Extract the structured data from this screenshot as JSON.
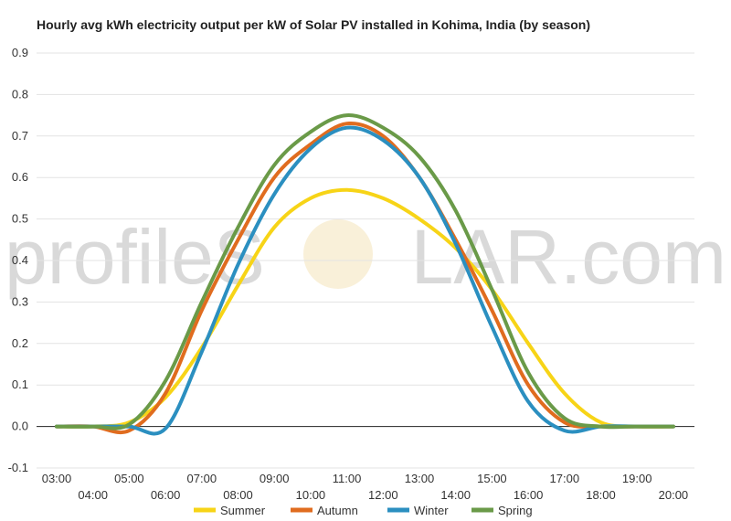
{
  "title": "Hourly avg kWh electricity output per kW of Solar PV installed in Kohima, India (by season)",
  "watermark": {
    "left": "profileS",
    "right": "LAR.com"
  },
  "chart_data": {
    "type": "line",
    "title": "Hourly avg kWh electricity output per kW of Solar PV installed in Kohima, India (by season)",
    "xlabel": "",
    "ylabel": "",
    "x": [
      "03:00",
      "04:00",
      "05:00",
      "06:00",
      "07:00",
      "08:00",
      "09:00",
      "10:00",
      "11:00",
      "12:00",
      "13:00",
      "14:00",
      "15:00",
      "16:00",
      "17:00",
      "18:00",
      "19:00",
      "20:00"
    ],
    "ylim": [
      -0.1,
      0.9
    ],
    "yticks": [
      "-0.1",
      "0.0",
      "0.1",
      "0.2",
      "0.3",
      "0.4",
      "0.5",
      "0.6",
      "0.7",
      "0.8",
      "0.9"
    ],
    "grid": true,
    "legend_position": "bottom",
    "series": [
      {
        "name": "Summer",
        "color": "#f7d417",
        "values": [
          0.0,
          0.0,
          0.01,
          0.07,
          0.19,
          0.34,
          0.48,
          0.55,
          0.57,
          0.55,
          0.5,
          0.43,
          0.33,
          0.2,
          0.08,
          0.01,
          0.0,
          0.0
        ]
      },
      {
        "name": "Autumn",
        "color": "#e06c1f",
        "values": [
          0.0,
          0.0,
          -0.01,
          0.08,
          0.28,
          0.45,
          0.6,
          0.68,
          0.73,
          0.7,
          0.6,
          0.45,
          0.28,
          0.1,
          0.01,
          0.0,
          0.0,
          0.0
        ]
      },
      {
        "name": "Winter",
        "color": "#2b8fc0",
        "values": [
          0.0,
          0.0,
          0.0,
          -0.005,
          0.18,
          0.39,
          0.56,
          0.67,
          0.72,
          0.69,
          0.6,
          0.44,
          0.24,
          0.06,
          -0.01,
          0.0,
          0.0,
          0.0
        ]
      },
      {
        "name": "Spring",
        "color": "#6a9a48",
        "values": [
          0.0,
          0.0,
          0.005,
          0.11,
          0.3,
          0.48,
          0.63,
          0.71,
          0.75,
          0.72,
          0.65,
          0.52,
          0.33,
          0.13,
          0.02,
          0.0,
          0.0,
          0.0
        ]
      }
    ]
  }
}
